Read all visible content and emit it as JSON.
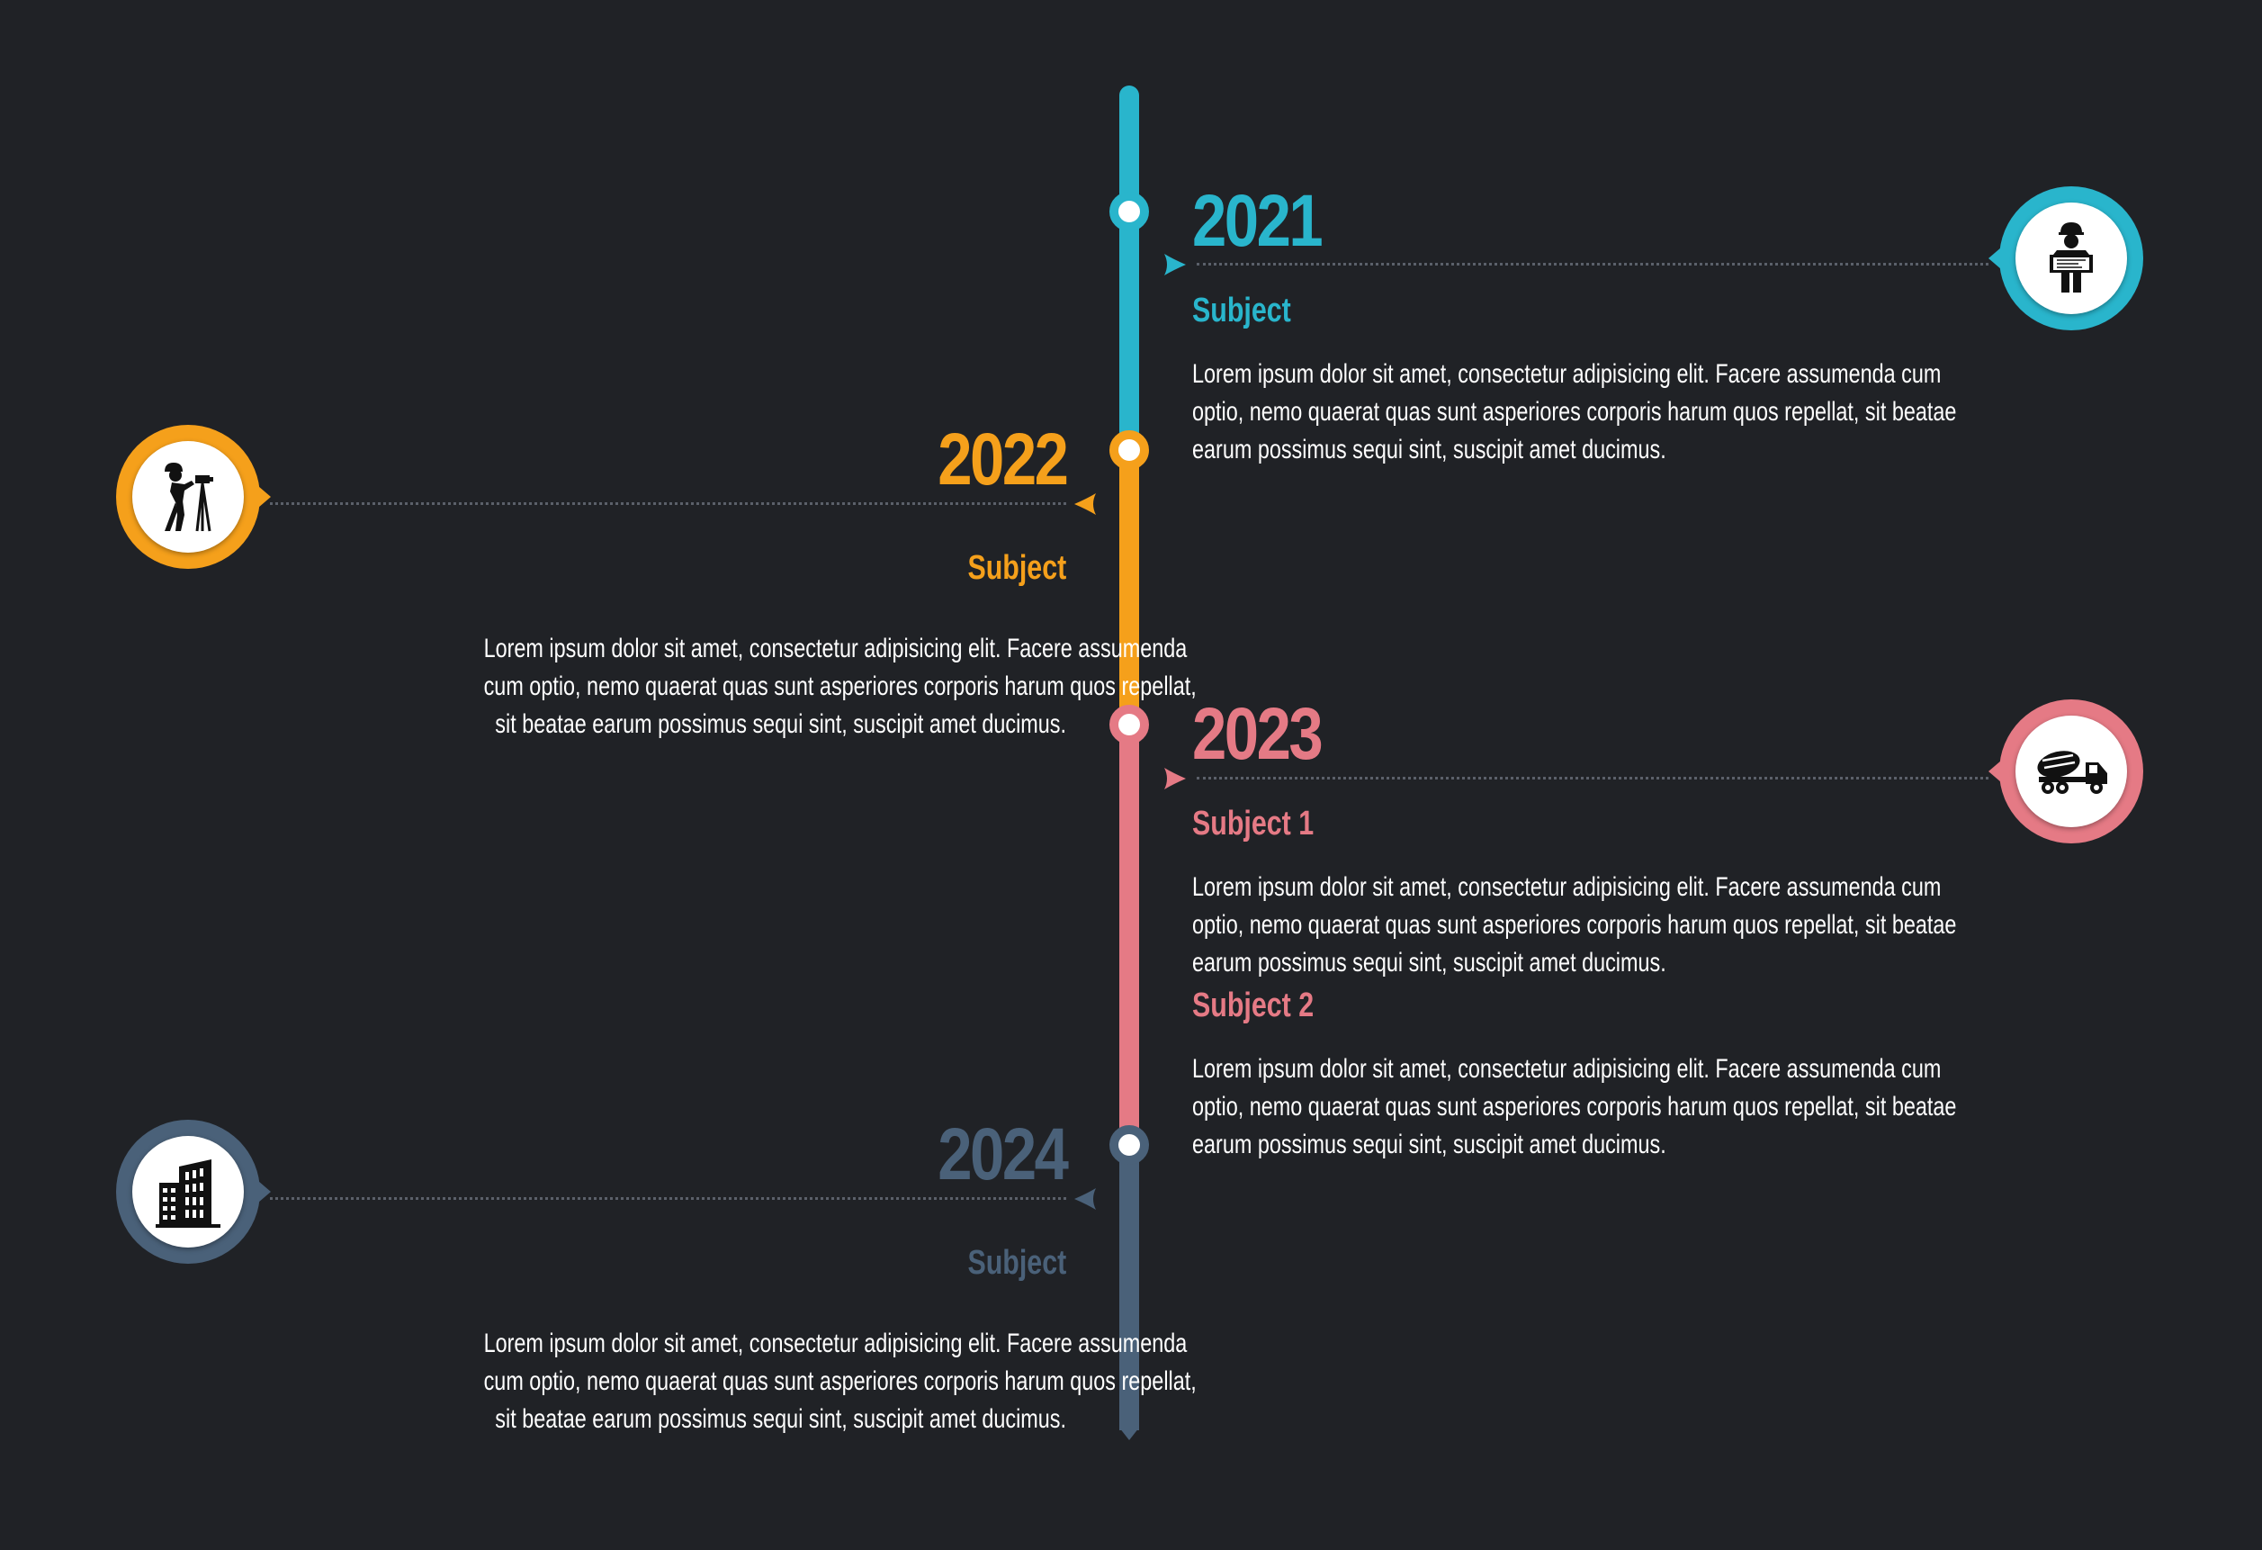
{
  "colors": {
    "background": "#202226",
    "teal": "#29b5cc",
    "orange": "#f5a01b",
    "pink": "#e57a85",
    "slate": "#4a6179",
    "text": "#ffffff",
    "connector": "#5b606a"
  },
  "timeline": {
    "events": [
      {
        "year": "2021",
        "side": "right",
        "color": "#29b5cc",
        "icon": "engineer-with-blueprint-icon",
        "subjects": [
          {
            "title": "Subject",
            "lines": [
              "Lorem ipsum dolor sit amet, consectetur adipisicing elit. Facere assumenda cum",
              "optio, nemo quaerat quas sunt asperiores corporis harum quos repellat, sit beatae",
              "earum possimus sequi sint, suscipit amet ducimus."
            ]
          }
        ]
      },
      {
        "year": "2022",
        "side": "left",
        "color": "#f5a01b",
        "icon": "surveyor-icon",
        "subjects": [
          {
            "title": "Subject",
            "lines": [
              "Lorem ipsum dolor sit amet, consectetur adipisicing elit. Facere assumenda",
              "cum optio, nemo quaerat quas sunt asperiores corporis harum quos repellat,",
              "sit beatae earum possimus sequi sint, suscipit amet ducimus."
            ]
          }
        ]
      },
      {
        "year": "2023",
        "side": "right",
        "color": "#e57a85",
        "icon": "concrete-mixer-truck-icon",
        "subjects": [
          {
            "title": "Subject 1",
            "lines": [
              "Lorem ipsum dolor sit amet, consectetur adipisicing elit. Facere assumenda cum",
              "optio, nemo quaerat quas sunt asperiores corporis harum quos repellat, sit beatae",
              "earum possimus sequi sint, suscipit amet ducimus."
            ]
          },
          {
            "title": "Subject 2",
            "lines": [
              "Lorem ipsum dolor sit amet, consectetur adipisicing elit. Facere assumenda cum",
              "optio, nemo quaerat quas sunt asperiores corporis harum quos repellat, sit beatae",
              "earum possimus sequi sint, suscipit amet ducimus."
            ]
          }
        ]
      },
      {
        "year": "2024",
        "side": "left",
        "color": "#4a6179",
        "icon": "office-buildings-icon",
        "subjects": [
          {
            "title": "Subject",
            "lines": [
              "Lorem ipsum dolor sit amet, consectetur adipisicing elit. Facere assumenda",
              "cum optio, nemo quaerat quas sunt asperiores corporis harum quos repellat,",
              "sit beatae earum possimus sequi sint, suscipit amet ducimus."
            ]
          }
        ]
      }
    ]
  }
}
